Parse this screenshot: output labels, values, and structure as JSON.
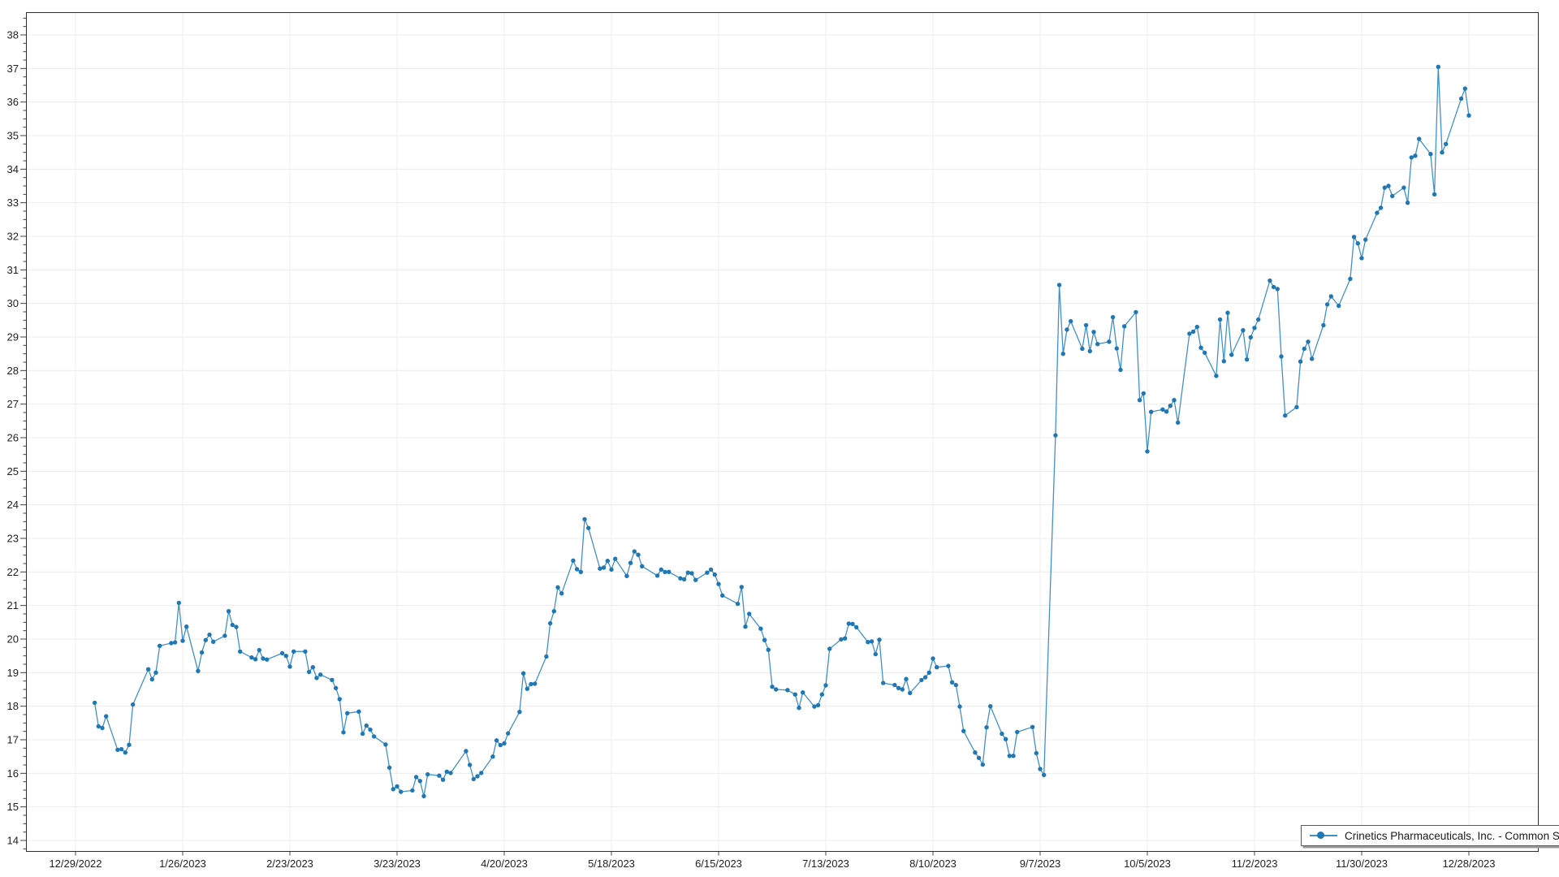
{
  "chart_data": {
    "type": "line",
    "title": "",
    "xlabel": "",
    "ylabel": "",
    "grid": "on",
    "legend_position": "bottom-right",
    "accent_color": "#4191c9",
    "marker_color": "#1f77b4",
    "x_tick_labels": [
      "12/29/2022",
      "1/26/2023",
      "2/23/2023",
      "3/23/2023",
      "4/20/2023",
      "5/18/2023",
      "6/15/2023",
      "7/13/2023",
      "8/10/2023",
      "9/7/2023",
      "10/5/2023",
      "11/2/2023",
      "11/30/2023",
      "12/28/2023"
    ],
    "y_axis": {
      "min": 14,
      "max": 38,
      "step": 1,
      "minor_step": 0.25,
      "visible_range": [
        13.7,
        38.7
      ]
    },
    "x_axis": {
      "epoch_date": "2022-12-29",
      "tick_interval_days": 28
    },
    "series": [
      {
        "name": "Crinetics Pharmaceuticals, Inc. - Common Stock",
        "trading_days": {
          "start": "2023-01-03",
          "end": "2023-12-28",
          "holidays": [
            "2023-01-16",
            "2023-02-20",
            "2023-04-07",
            "2023-05-29",
            "2023-06-19",
            "2023-07-04",
            "2023-09-04",
            "2023-11-23",
            "2023-12-25"
          ]
        },
        "values": [
          18.1,
          17.4,
          17.35,
          17.7,
          16.7,
          16.72,
          16.62,
          16.85,
          18.05,
          19.1,
          18.8,
          19.0,
          19.8,
          19.88,
          19.9,
          21.08,
          19.95,
          20.37,
          19.05,
          19.6,
          19.97,
          20.13,
          19.92,
          20.1,
          20.83,
          20.42,
          20.36,
          19.63,
          19.45,
          19.4,
          19.67,
          19.42,
          19.39,
          19.58,
          19.5,
          19.18,
          19.63,
          19.63,
          19.02,
          19.16,
          18.84,
          18.94,
          18.78,
          18.54,
          18.21,
          17.22,
          17.79,
          17.84,
          17.18,
          17.42,
          17.3,
          17.1,
          16.86,
          16.17,
          15.53,
          15.61,
          15.45,
          15.49,
          15.89,
          15.77,
          15.32,
          15.97,
          15.93,
          15.81,
          16.05,
          16.01,
          16.66,
          16.25,
          15.83,
          15.91,
          16.01,
          16.5,
          16.98,
          16.84,
          16.89,
          17.19,
          17.83,
          18.98,
          18.52,
          18.66,
          18.67,
          19.48,
          20.47,
          20.83,
          21.54,
          21.36,
          22.34,
          22.08,
          22.0,
          23.57,
          23.31,
          22.1,
          22.13,
          22.33,
          22.07,
          22.39,
          21.88,
          22.27,
          22.61,
          22.51,
          22.17,
          21.89,
          22.07,
          22.0,
          22.0,
          21.81,
          21.78,
          21.98,
          21.96,
          21.76,
          21.98,
          22.07,
          21.92,
          21.64,
          21.3,
          21.05,
          21.55,
          20.37,
          20.75,
          20.31,
          19.97,
          19.68,
          18.58,
          18.5,
          18.48,
          18.35,
          17.95,
          18.41,
          17.99,
          18.03,
          18.35,
          18.62,
          19.71,
          19.99,
          20.02,
          20.46,
          20.45,
          20.35,
          19.91,
          19.93,
          19.55,
          19.98,
          18.69,
          18.63,
          18.54,
          18.5,
          18.81,
          18.39,
          18.78,
          18.86,
          19.0,
          19.42,
          19.16,
          19.2,
          18.71,
          18.63,
          17.99,
          17.26,
          16.62,
          16.46,
          16.26,
          17.37,
          18.0,
          17.18,
          17.02,
          16.52,
          16.52,
          17.23,
          17.38,
          16.6,
          16.13,
          15.95,
          26.07,
          30.55,
          28.5,
          29.22,
          29.47,
          28.65,
          29.35,
          28.58,
          29.15,
          28.79,
          28.86,
          29.59,
          28.66,
          28.02,
          29.32,
          29.74,
          27.12,
          27.32,
          25.59,
          26.77,
          26.84,
          26.78,
          26.95,
          27.12,
          26.45,
          29.1,
          29.16,
          29.3,
          28.68,
          28.53,
          27.84,
          29.52,
          28.28,
          29.72,
          28.47,
          29.2,
          28.33,
          28.99,
          29.27,
          29.52,
          30.68,
          30.49,
          30.43,
          28.42,
          26.66,
          26.91,
          28.27,
          28.65,
          28.86,
          28.35,
          29.35,
          29.97,
          30.21,
          29.93,
          30.73,
          31.98,
          31.79,
          31.35,
          31.9,
          32.7,
          32.85,
          33.45,
          33.5,
          33.2,
          33.45,
          33.0,
          34.35,
          34.4,
          34.9,
          34.45,
          33.25,
          37.05,
          34.5,
          34.75,
          36.1,
          36.4,
          35.6
        ]
      }
    ]
  },
  "legend": {
    "label": "Crinetics Pharmaceuticals, Inc. - Common Stock"
  }
}
